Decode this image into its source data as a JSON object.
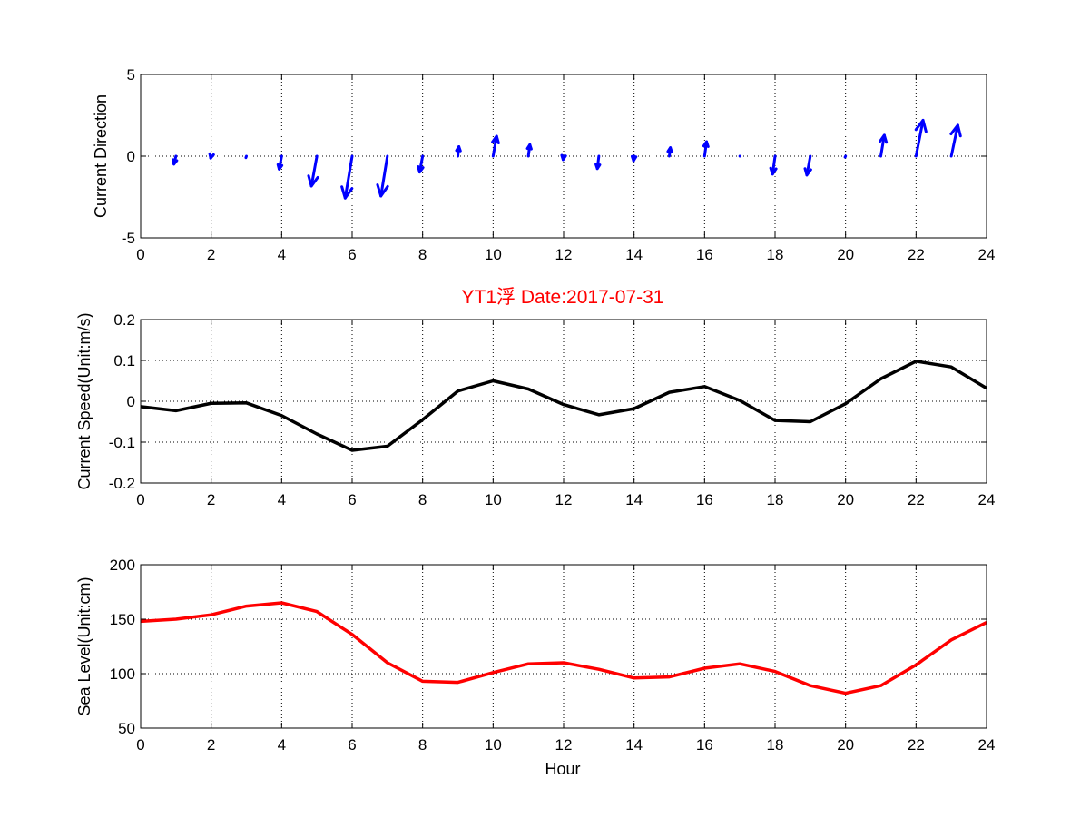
{
  "chart_data": [
    {
      "type": "quiver",
      "ylabel": "Current Direction",
      "xlim": [
        0,
        24
      ],
      "ylim": [
        -5,
        5
      ],
      "xticks": [
        "0",
        "2",
        "4",
        "6",
        "8",
        "10",
        "12",
        "14",
        "16",
        "18",
        "20",
        "22",
        "24"
      ],
      "yticks": [
        "-5",
        "0",
        "5"
      ],
      "grid": true,
      "color": "#0000ff",
      "x": [
        1,
        2,
        3,
        4,
        5,
        6,
        7,
        8,
        9,
        10,
        11,
        12,
        13,
        14,
        15,
        16,
        17,
        18,
        19,
        20,
        21,
        22,
        23
      ],
      "u": [
        -0.2,
        -0.05,
        -0.05,
        -0.25,
        -0.55,
        -0.7,
        -0.65,
        -0.3,
        0.1,
        0.35,
        0.15,
        -0.05,
        -0.15,
        -0.05,
        0.1,
        0.2,
        0,
        -0.25,
        -0.35,
        -0.05,
        0.35,
        0.7,
        0.65
      ],
      "v": [
        -0.8,
        -0.2,
        -0.15,
        -1.3,
        -3.0,
        -4.2,
        -4.0,
        -1.6,
        0.95,
        2.0,
        1.15,
        -0.35,
        -1.25,
        -0.45,
        0.85,
        1.45,
        0,
        -1.8,
        -1.9,
        -0.1,
        2.1,
        3.6,
        3.1
      ]
    },
    {
      "type": "line",
      "title": "YT1浮    Date:2017-07-31",
      "ylabel": "Current Speed(Unit:m/s)",
      "xlim": [
        0,
        24
      ],
      "ylim": [
        -0.2,
        0.2
      ],
      "xticks": [
        "0",
        "2",
        "4",
        "6",
        "8",
        "10",
        "12",
        "14",
        "16",
        "18",
        "20",
        "22",
        "24"
      ],
      "yticks": [
        "-0.2",
        "-0.1",
        "0",
        "0.1",
        "0.2"
      ],
      "grid": true,
      "color": "#000000",
      "x": [
        0,
        1,
        2,
        3,
        4,
        5,
        6,
        7,
        8,
        9,
        10,
        11,
        12,
        13,
        14,
        15,
        16,
        17,
        18,
        19,
        20,
        21,
        22,
        23,
        24
      ],
      "y": [
        -0.013,
        -0.023,
        -0.005,
        -0.004,
        -0.035,
        -0.08,
        -0.12,
        -0.11,
        -0.045,
        0.025,
        0.05,
        0.03,
        -0.008,
        -0.033,
        -0.018,
        0.022,
        0.036,
        0.002,
        -0.047,
        -0.05,
        -0.006,
        0.055,
        0.098,
        0.084,
        0.032
      ]
    },
    {
      "type": "line",
      "xlabel": "Hour",
      "ylabel": "Sea Level(Unit:cm)",
      "xlim": [
        0,
        24
      ],
      "ylim": [
        50,
        200
      ],
      "xticks": [
        "0",
        "2",
        "4",
        "6",
        "8",
        "10",
        "12",
        "14",
        "16",
        "18",
        "20",
        "22",
        "24"
      ],
      "yticks": [
        "50",
        "100",
        "150",
        "200"
      ],
      "grid": true,
      "color": "#ff0000",
      "x": [
        0,
        1,
        2,
        3,
        4,
        5,
        6,
        7,
        8,
        9,
        10,
        11,
        12,
        13,
        14,
        15,
        16,
        17,
        18,
        19,
        20,
        21,
        22,
        23,
        24
      ],
      "y": [
        148,
        150,
        154,
        162,
        165,
        157,
        136,
        110,
        93,
        92,
        101,
        109,
        110,
        104,
        96,
        97,
        105,
        109,
        102,
        89,
        82,
        89,
        108,
        131,
        147
      ]
    }
  ]
}
